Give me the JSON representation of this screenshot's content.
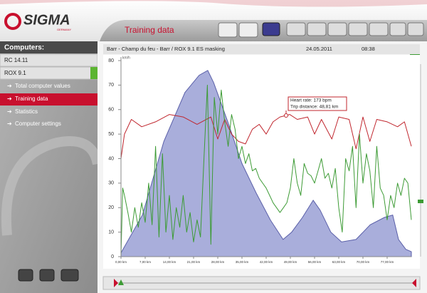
{
  "header": {
    "logo": "SIGMA",
    "logo_sub": "GERMANY",
    "page_title": "Training data"
  },
  "sidebar": {
    "title": "Computers:",
    "computers": [
      "RC 14.11",
      "ROX 9.1"
    ],
    "menu": [
      "Total computer values",
      "Training data",
      "Statistics",
      "Computer settings"
    ]
  },
  "chart_header": {
    "route": "Barr - Champ du feu - Barr / ROX 9.1 ES masking",
    "date": "24.05.2011",
    "time": "08:38"
  },
  "tooltip": [
    "Heart rate: 173 bpm",
    "Trip distance: 48,81 km"
  ],
  "chart_data": {
    "type": "line",
    "y_unit": "km/h",
    "xlim": [
      0,
      84
    ],
    "ylim": [
      0,
      80
    ],
    "yticks": [
      0,
      10,
      20,
      30,
      40,
      50,
      60,
      70,
      80
    ],
    "xticks": [
      {
        "value": 0,
        "label": "0,00 km"
      },
      {
        "value": 7,
        "label": "7,00 km"
      },
      {
        "value": 14,
        "label": "14,00 km"
      },
      {
        "value": 21,
        "label": "21,00 km"
      },
      {
        "value": 28,
        "label": "28,00 km"
      },
      {
        "value": 35,
        "label": "35,00 km"
      },
      {
        "value": 42,
        "label": "42,00 km"
      },
      {
        "value": 49,
        "label": "49,00 km"
      },
      {
        "value": 56,
        "label": "56,00 km"
      },
      {
        "value": 63,
        "label": "63,00 km"
      },
      {
        "value": 70,
        "label": "70,00 km"
      },
      {
        "value": 77,
        "label": "77,00 km"
      }
    ],
    "series": [
      {
        "style": "area",
        "color": "#5a5fa8",
        "fill": "#a9aedb",
        "x": [
          0,
          6.2,
          12.4,
          18.5,
          22.6,
          25.1,
          26.8,
          30.9,
          35,
          39.1,
          43.2,
          46.9,
          49.4,
          52.5,
          55.6,
          57.6,
          60.7,
          63.8,
          68,
          72.1,
          76.2,
          78.6,
          80.3,
          82.4,
          84
        ],
        "values": [
          1.5,
          17,
          47,
          67,
          74,
          76,
          71,
          55,
          38,
          26,
          15,
          7,
          10,
          16,
          23,
          19,
          10,
          6,
          7,
          13,
          16,
          17,
          7,
          3,
          2
        ]
      },
      {
        "style": "line",
        "color": "#c0262e",
        "x": [
          0,
          1,
          3,
          6,
          10,
          14,
          18,
          22,
          26,
          28,
          30,
          32,
          34,
          36,
          38,
          40,
          42,
          44,
          46,
          48.81,
          51,
          54,
          56,
          58,
          61,
          63,
          66,
          68,
          70,
          72,
          74,
          77,
          80,
          82,
          84
        ],
        "values": [
          40,
          50,
          56,
          53,
          55,
          58,
          57,
          54,
          57,
          48,
          56,
          50,
          47,
          46,
          52,
          54,
          50,
          55,
          57,
          58,
          56,
          57,
          50,
          56,
          48,
          57,
          56,
          44,
          57,
          47,
          56,
          55,
          53,
          55,
          45
        ]
      },
      {
        "style": "line",
        "color": "#3d9b35",
        "x": [
          0,
          0.5,
          1,
          2,
          3,
          4,
          5,
          6,
          7,
          8,
          9,
          10,
          11,
          12,
          13,
          14,
          15,
          16,
          17,
          18,
          19,
          20,
          21,
          22,
          23,
          24,
          25,
          26,
          27,
          28,
          29,
          30,
          31,
          32,
          33,
          34,
          35,
          36,
          37,
          38,
          39,
          40,
          41,
          42,
          43,
          44,
          45,
          46,
          47,
          48,
          49,
          50,
          51,
          52,
          53,
          54,
          55,
          56,
          57,
          58,
          59,
          60,
          61,
          62,
          63,
          64,
          65,
          66,
          67,
          68,
          69,
          70,
          71,
          72,
          73,
          74,
          75,
          76,
          77,
          78,
          79,
          80,
          81,
          82,
          83,
          84
        ],
        "values": [
          0,
          28,
          25,
          18,
          10,
          20,
          12,
          22,
          14,
          30,
          13,
          45,
          8,
          42,
          10,
          25,
          7,
          20,
          12,
          25,
          10,
          18,
          6,
          15,
          8,
          40,
          70,
          5,
          65,
          50,
          68,
          55,
          45,
          58,
          52,
          40,
          45,
          38,
          42,
          35,
          36,
          32,
          30,
          28,
          25,
          22,
          20,
          18,
          20,
          22,
          28,
          40,
          30,
          25,
          38,
          34,
          33,
          30,
          35,
          40,
          32,
          34,
          28,
          36,
          20,
          10,
          40,
          35,
          45,
          20,
          50,
          30,
          42,
          35,
          20,
          45,
          28,
          25,
          15,
          25,
          20,
          30,
          25,
          32,
          30,
          15
        ]
      }
    ]
  }
}
